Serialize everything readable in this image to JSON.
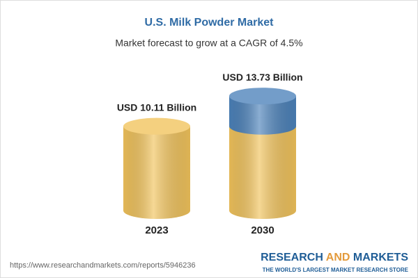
{
  "chart_data": {
    "type": "cylinder",
    "title": "U.S. Milk Powder Market",
    "subtitle": "Market forecast to grow at a CAGR of 4.5%",
    "categories": [
      "2023",
      "2030"
    ],
    "values": [
      10.11,
      13.73
    ],
    "value_labels": [
      "USD 10.11 Billion",
      "USD 13.73 Billion"
    ],
    "color": "#f1c35c",
    "growth_color": "#4c82ba"
  },
  "source": "https://www.researchandmarkets.com/reports/5946236",
  "brand": {
    "name_start": "RESEARCH",
    "name_middle": "AND",
    "name_end": "MARKETS",
    "tagline": "THE WORLD'S LARGEST MARKET RESEARCH STORE"
  }
}
